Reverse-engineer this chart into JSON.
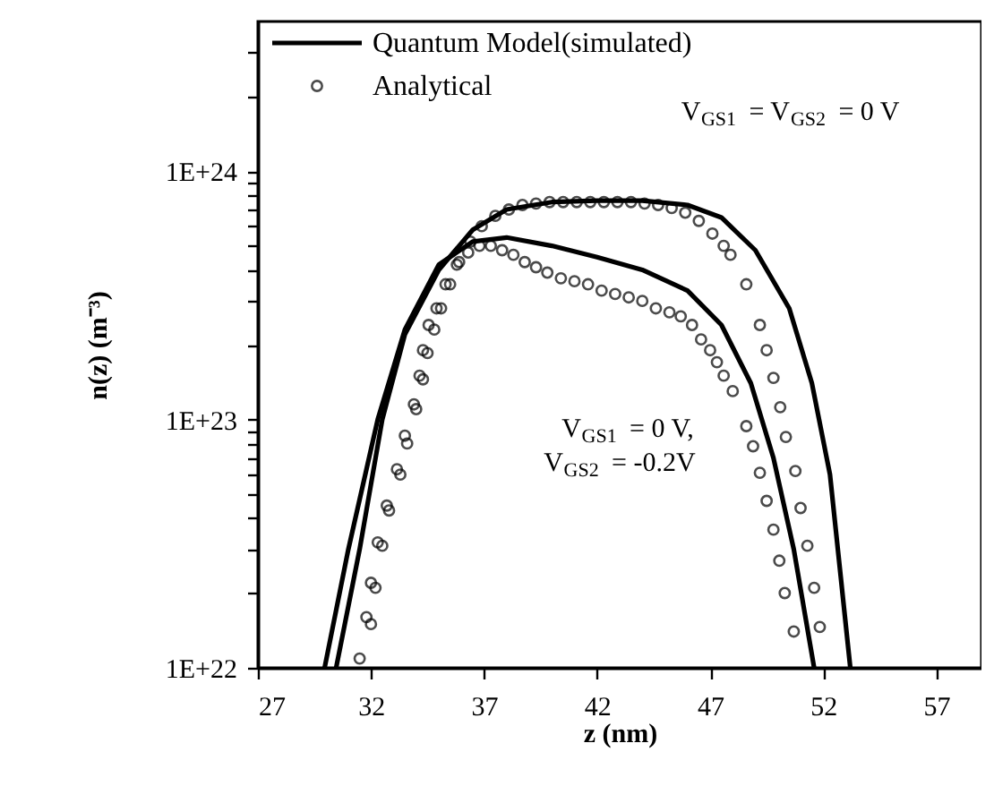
{
  "chart_data": {
    "type": "line",
    "xlabel": "z (nm)",
    "ylabel": "n(z) (m⁻³)",
    "log": "y",
    "grid": false,
    "legend": "top left",
    "xlim": [
      27,
      59
    ],
    "xticks": [
      27,
      32,
      37,
      42,
      47,
      52,
      57
    ],
    "ylim": [
      1e+22,
      4e+24
    ],
    "yticks": [
      {
        "value": 1e+22,
        "label": "1E+22"
      },
      {
        "value": 2e+22,
        "label": null
      },
      {
        "value": 3e+22,
        "label": null
      },
      {
        "value": 4e+22,
        "label": null
      },
      {
        "value": 5e+22,
        "label": null
      },
      {
        "value": 6e+22,
        "label": null
      },
      {
        "value": 7e+22,
        "label": null
      },
      {
        "value": 8e+22,
        "label": null
      },
      {
        "value": 9e+22,
        "label": null
      },
      {
        "value": 1e+23,
        "label": "1E+23"
      },
      {
        "value": 2e+23,
        "label": null
      },
      {
        "value": 3e+23,
        "label": null
      },
      {
        "value": 4e+23,
        "label": null
      },
      {
        "value": 5e+23,
        "label": null
      },
      {
        "value": 6e+23,
        "label": null
      },
      {
        "value": 7e+23,
        "label": null
      },
      {
        "value": 8e+23,
        "label": null
      },
      {
        "value": 9e+23,
        "label": null
      },
      {
        "value": 1e+24,
        "label": "1E+24"
      },
      {
        "value": 2e+24,
        "label": null
      },
      {
        "value": 3e+24,
        "label": null
      }
    ],
    "annotations": [
      "V$_{GS1}$ = V$_{GS2}$ = 0 V",
      "V$_{GS1}$ = 0 V,\nV$_{GS2}$ = -0.2V"
    ],
    "series": [
      {
        "name": "Quantum Model(simulated)",
        "color": "#000000",
        "line_style": "solid",
        "marker": "none",
        "x": [
          30.46,
          31.5,
          32.5,
          33.5,
          35,
          36.5,
          38,
          40,
          42,
          44,
          46,
          47.5,
          49,
          50.5,
          51.5,
          52.3,
          53.2
        ],
        "values": [
          1e+22,
          3e+22,
          1e+23,
          2.2e+23,
          4e+23,
          5.8e+23,
          7e+23,
          7.5e+23,
          7.6e+23,
          7.6e+23,
          7.3e+23,
          6.5e+23,
          4.8e+23,
          2.8e+23,
          1.4e+23,
          6e+22,
          1e+22
        ]
      },
      {
        "color": "#000000",
        "line_style": "solid",
        "marker": "none",
        "x": [
          29.95,
          31,
          32.3,
          33.5,
          35,
          36.5,
          38,
          40,
          42,
          44,
          46,
          47.5,
          48.8,
          49.8,
          50.7,
          51.6
        ],
        "values": [
          1e+22,
          3e+22,
          1e+23,
          2.3e+23,
          4.2e+23,
          5.2e+23,
          5.4e+23,
          5e+23,
          4.5e+23,
          4e+23,
          3.3e+23,
          2.4e+23,
          1.4e+23,
          7e+22,
          3e+22,
          1e+22
        ]
      },
      {
        "name": "Analytical",
        "type": "scatter",
        "color": "#000000",
        "marker": "circle",
        "x": [
          32.0,
          32.2,
          32.5,
          32.8,
          33.3,
          33.6,
          34.0,
          34.3,
          34.5,
          34.8,
          35.1,
          35.5,
          35.9,
          36.4,
          36.9,
          37.5,
          38.1,
          38.7,
          39.3,
          39.9,
          40.5,
          41.1,
          41.7,
          42.3,
          42.9,
          43.5,
          44.1,
          44.7,
          45.3,
          45.9,
          46.5,
          47.1,
          47.6,
          47.9,
          48.6,
          49.2,
          49.5,
          49.8,
          50.1,
          50.35,
          50.77,
          51.0,
          51.3,
          51.6,
          51.85
        ],
        "values": [
          1.5e+22,
          2.1e+22,
          3.1e+22,
          4.3e+22,
          6e+22,
          8e+22,
          1.1e+23,
          1.45e+23,
          1.85e+23,
          2.3e+23,
          2.8e+23,
          3.5e+23,
          4.3e+23,
          5.2e+23,
          6e+23,
          6.6e+23,
          7e+23,
          7.3e+23,
          7.4e+23,
          7.5e+23,
          7.5e+23,
          7.5e+23,
          7.5e+23,
          7.5e+23,
          7.5e+23,
          7.5e+23,
          7.4e+23,
          7.3e+23,
          7.1e+23,
          6.8e+23,
          6.3e+23,
          5.6e+23,
          5e+23,
          4.6e+23,
          3.5e+23,
          2.4e+23,
          1.9e+23,
          1.47e+23,
          1.12e+23,
          8.5e+22,
          6.2e+22,
          4.4e+22,
          3.1e+22,
          2.1e+22,
          1.46e+22
        ]
      },
      {
        "type": "scatter",
        "color": "#000000",
        "marker": "circle",
        "x": [
          31.5,
          31.8,
          32.0,
          32.3,
          32.7,
          33.15,
          33.5,
          33.9,
          34.15,
          34.3,
          34.55,
          34.9,
          35.3,
          35.8,
          36.3,
          36.8,
          37.3,
          37.8,
          38.3,
          38.8,
          39.3,
          39.8,
          40.4,
          41.0,
          41.6,
          42.2,
          42.8,
          43.4,
          44.0,
          44.6,
          45.2,
          45.7,
          46.2,
          46.6,
          47.0,
          47.3,
          47.6,
          48.0,
          48.6,
          48.9,
          49.2,
          49.5,
          49.8,
          50.06,
          50.3,
          50.7
        ],
        "values": [
          1.09e+22,
          1.6e+22,
          2.2e+22,
          3.2e+22,
          4.5e+22,
          6.3e+22,
          8.6e+22,
          1.15e+23,
          1.5e+23,
          1.9e+23,
          2.4e+23,
          2.8e+23,
          3.5e+23,
          4.2e+23,
          4.7e+23,
          5e+23,
          5e+23,
          4.8e+23,
          4.6e+23,
          4.3e+23,
          4.1e+23,
          3.9e+23,
          3.7e+23,
          3.6e+23,
          3.5e+23,
          3.3e+23,
          3.2e+23,
          3.1e+23,
          3e+23,
          2.8e+23,
          2.7e+23,
          2.6e+23,
          2.4e+23,
          2.1e+23,
          1.9e+23,
          1.7e+23,
          1.5e+23,
          1.3e+23,
          9.4e+22,
          7.8e+22,
          6.1e+22,
          4.7e+22,
          3.6e+22,
          2.7e+22,
          2e+22,
          1.4e+22
        ]
      }
    ]
  }
}
